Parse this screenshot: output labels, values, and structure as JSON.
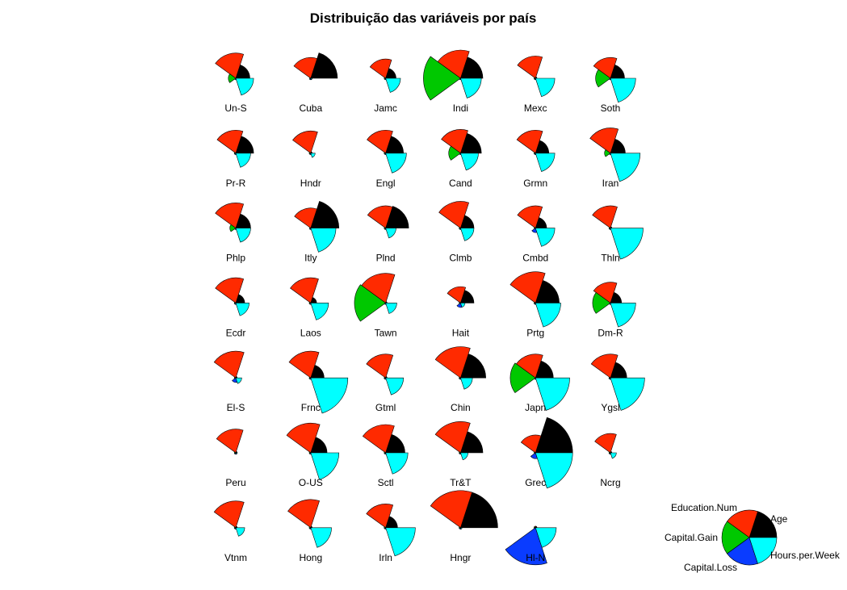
{
  "chart_data": {
    "type": "star-segments",
    "title": "Distribuição das variáveis por país",
    "variables": [
      "Age",
      "Education.Num",
      "Capital.Gain",
      "Capital.Loss",
      "Hours.per.Week"
    ],
    "variable_colors": [
      "#000000",
      "#ff2a00",
      "#00c800",
      "#0a3cff",
      "#00ffff"
    ],
    "scale": "relative 0–1 per variable",
    "countries": [
      {
        "name": "Un-S",
        "values": [
          0.38,
          0.68,
          0.2,
          0.04,
          0.48
        ]
      },
      {
        "name": "Cuba",
        "values": [
          0.72,
          0.56,
          0.03,
          0.04,
          0.04
        ]
      },
      {
        "name": "Jamc",
        "values": [
          0.28,
          0.52,
          0.04,
          0.04,
          0.4
        ]
      },
      {
        "name": "Indi",
        "values": [
          0.6,
          0.76,
          1.0,
          0.04,
          0.56
        ]
      },
      {
        "name": "Mexc",
        "values": [
          0.04,
          0.6,
          0.04,
          0.04,
          0.52
        ]
      },
      {
        "name": "Soth",
        "values": [
          0.38,
          0.56,
          0.4,
          0.04,
          0.68
        ]
      },
      {
        "name": "Pr-R",
        "values": [
          0.48,
          0.62,
          0.04,
          0.04,
          0.4
        ]
      },
      {
        "name": "Hndr",
        "values": [
          0.04,
          0.6,
          0.04,
          0.04,
          0.12
        ]
      },
      {
        "name": "Engl",
        "values": [
          0.48,
          0.62,
          0.04,
          0.04,
          0.56
        ]
      },
      {
        "name": "Cand",
        "values": [
          0.56,
          0.64,
          0.32,
          0.04,
          0.48
        ]
      },
      {
        "name": "Grmn",
        "values": [
          0.36,
          0.62,
          0.04,
          0.04,
          0.52
        ]
      },
      {
        "name": "Iran",
        "values": [
          0.4,
          0.68,
          0.16,
          0.04,
          0.8
        ]
      },
      {
        "name": "Phlp",
        "values": [
          0.4,
          0.68,
          0.16,
          0.04,
          0.4
        ]
      },
      {
        "name": "Itly",
        "values": [
          0.76,
          0.54,
          0.03,
          0.04,
          0.68
        ]
      },
      {
        "name": "Plnd",
        "values": [
          0.62,
          0.6,
          0.04,
          0.04,
          0.28
        ]
      },
      {
        "name": "Clmb",
        "values": [
          0.36,
          0.72,
          0.04,
          0.04,
          0.36
        ]
      },
      {
        "name": "Cmbd",
        "values": [
          0.3,
          0.6,
          0.04,
          0.12,
          0.52
        ]
      },
      {
        "name": "Thln",
        "values": [
          0.04,
          0.6,
          0.04,
          0.04,
          0.88
        ]
      },
      {
        "name": "Ecdr",
        "values": [
          0.24,
          0.68,
          0.04,
          0.04,
          0.36
        ]
      },
      {
        "name": "Laos",
        "values": [
          0.16,
          0.68,
          0.04,
          0.04,
          0.48
        ]
      },
      {
        "name": "Tawn",
        "values": [
          0.04,
          0.8,
          0.84,
          0.04,
          0.3
        ]
      },
      {
        "name": "Hait",
        "values": [
          0.36,
          0.44,
          0.04,
          0.12,
          0.12
        ]
      },
      {
        "name": "Prtg",
        "values": [
          0.64,
          0.84,
          0.04,
          0.04,
          0.68
        ]
      },
      {
        "name": "Dm-R",
        "values": [
          0.3,
          0.56,
          0.48,
          0.04,
          0.68
        ]
      },
      {
        "name": "El-S",
        "values": [
          0.04,
          0.72,
          0.04,
          0.12,
          0.16
        ]
      },
      {
        "name": "Frnc",
        "values": [
          0.36,
          0.72,
          0.04,
          0.04,
          1.0
        ]
      },
      {
        "name": "Gtml",
        "values": [
          0.04,
          0.64,
          0.04,
          0.04,
          0.48
        ]
      },
      {
        "name": "Chin",
        "values": [
          0.68,
          0.84,
          0.04,
          0.04,
          0.32
        ]
      },
      {
        "name": "Japn",
        "values": [
          0.48,
          0.64,
          0.68,
          0.04,
          0.92
        ]
      },
      {
        "name": "Ygsl",
        "values": [
          0.44,
          0.64,
          0.04,
          0.04,
          0.92
        ]
      },
      {
        "name": "Peru",
        "values": [
          0.04,
          0.64,
          0.04,
          0.04,
          0.04
        ]
      },
      {
        "name": "O-US",
        "values": [
          0.44,
          0.8,
          0.04,
          0.04,
          0.76
        ]
      },
      {
        "name": "Sctl",
        "values": [
          0.52,
          0.76,
          0.04,
          0.04,
          0.6
        ]
      },
      {
        "name": "Tr&T",
        "values": [
          0.6,
          0.84,
          0.04,
          0.04,
          0.2
        ]
      },
      {
        "name": "Grec",
        "values": [
          1.0,
          0.48,
          0.04,
          0.16,
          1.0
        ]
      },
      {
        "name": "Ncrg",
        "values": [
          0.04,
          0.52,
          0.04,
          0.04,
          0.16
        ]
      },
      {
        "name": "Vtnm",
        "values": [
          0.04,
          0.72,
          0.04,
          0.04,
          0.24
        ]
      },
      {
        "name": "Hong",
        "values": [
          0.04,
          0.76,
          0.04,
          0.04,
          0.56
        ]
      },
      {
        "name": "Irln",
        "values": [
          0.32,
          0.64,
          0.04,
          0.04,
          0.8
        ]
      },
      {
        "name": "Hngr",
        "values": [
          1.0,
          1.0,
          0.04,
          0.04,
          0.04
        ]
      },
      {
        "name": "Hl-N",
        "values": [
          0.04,
          0.04,
          0.04,
          1.0,
          0.56
        ]
      }
    ]
  }
}
